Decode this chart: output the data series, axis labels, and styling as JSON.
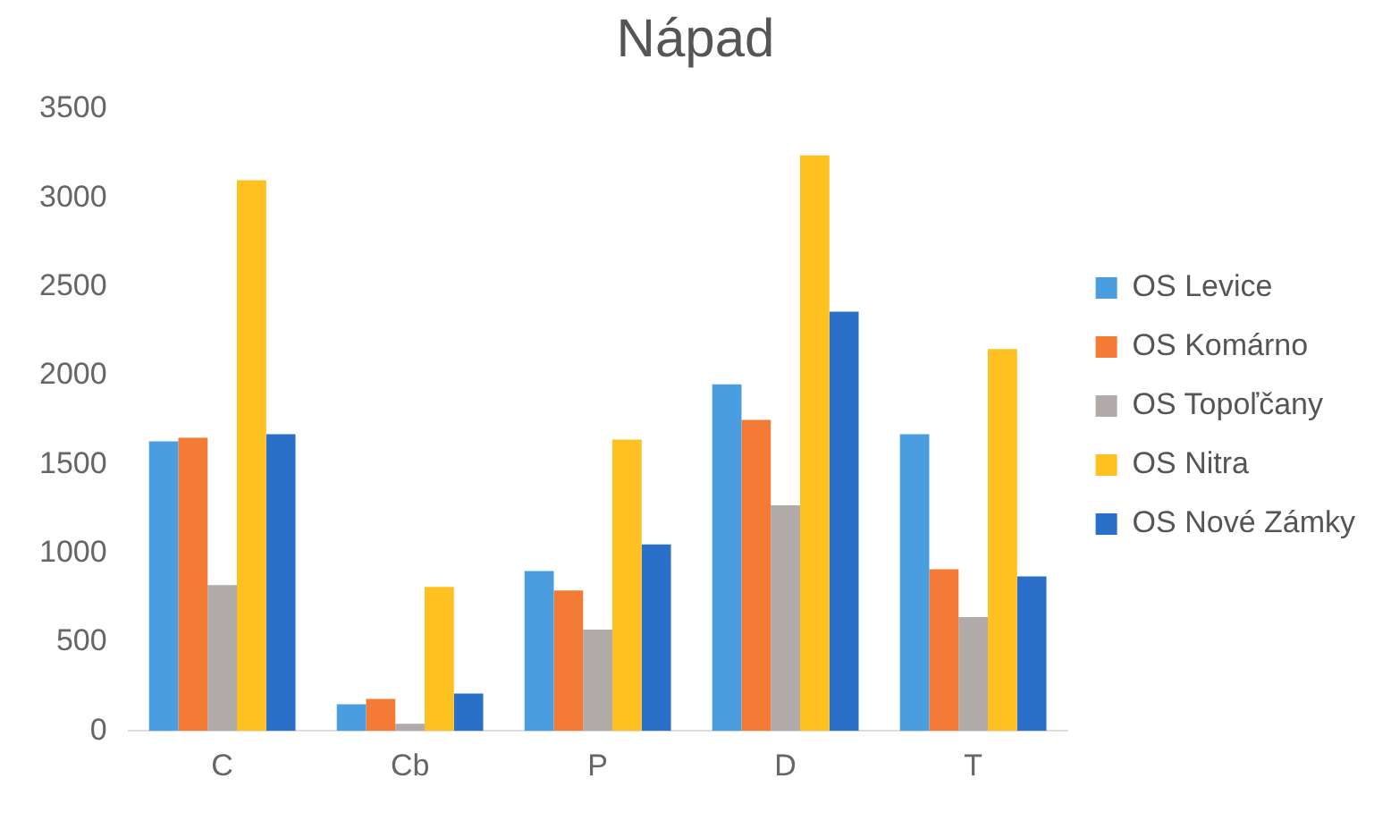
{
  "chart_data": {
    "type": "bar",
    "title": "Nápad",
    "categories": [
      "C",
      "Cb",
      "P",
      "D",
      "T"
    ],
    "series": [
      {
        "name": "OS Levice",
        "color": "#4a9ee0",
        "values": [
          1630,
          150,
          900,
          1950,
          1670
        ]
      },
      {
        "name": "OS Komárno",
        "color": "#f47b35",
        "values": [
          1650,
          180,
          790,
          1750,
          910
        ]
      },
      {
        "name": "OS Topoľčany",
        "color": "#b0aaa8",
        "values": [
          820,
          40,
          570,
          1270,
          640
        ]
      },
      {
        "name": "OS Nitra",
        "color": "#ffc022",
        "values": [
          3100,
          810,
          1640,
          3240,
          2150
        ]
      },
      {
        "name": "OS Nové Zámky",
        "color": "#2a70c8",
        "values": [
          1670,
          210,
          1050,
          2360,
          870
        ]
      }
    ],
    "ylim": [
      0,
      3500
    ],
    "yticks": [
      0,
      500,
      1000,
      1500,
      2000,
      2500,
      3000,
      3500
    ],
    "grid": false,
    "legend": "right"
  }
}
